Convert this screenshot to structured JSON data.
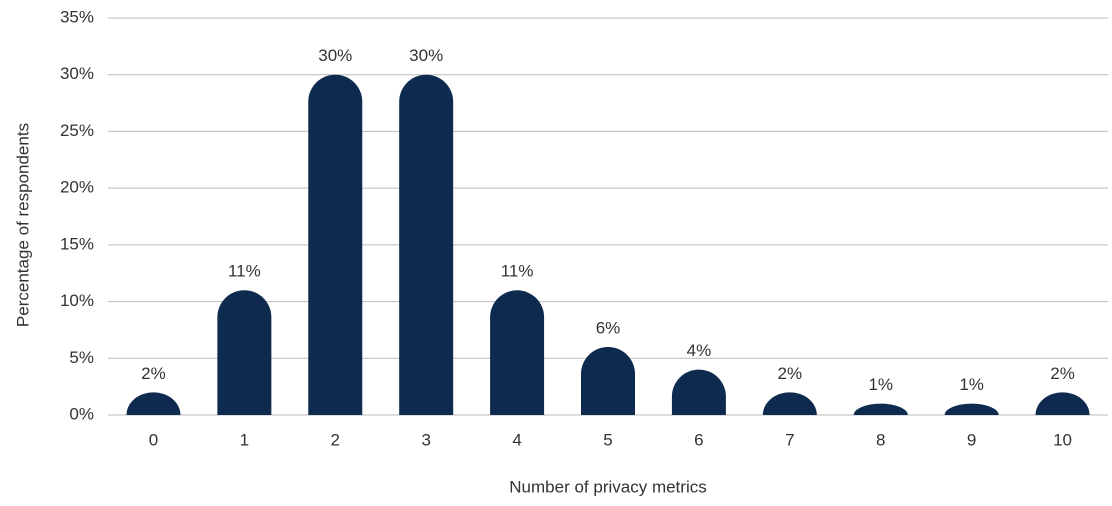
{
  "chart_data": {
    "type": "bar",
    "categories": [
      "0",
      "1",
      "2",
      "3",
      "4",
      "5",
      "6",
      "7",
      "8",
      "9",
      "10"
    ],
    "values": [
      2,
      11,
      30,
      30,
      11,
      6,
      4,
      2,
      1,
      1,
      2
    ],
    "value_labels": [
      "2%",
      "11%",
      "30%",
      "30%",
      "11%",
      "6%",
      "4%",
      "2%",
      "1%",
      "1%",
      "2%"
    ],
    "color": "#0f2a4f",
    "xlabel": "Number of privacy metrics",
    "ylabel": "Percentage of respondents",
    "ylim": [
      0,
      35
    ],
    "yticks": [
      {
        "value": 0,
        "label": "0%"
      },
      {
        "value": 5,
        "label": "5%"
      },
      {
        "value": 10,
        "label": "10%"
      },
      {
        "value": 15,
        "label": "15%"
      },
      {
        "value": 20,
        "label": "20%"
      },
      {
        "value": 25,
        "label": "25%"
      },
      {
        "value": 30,
        "label": "30%"
      },
      {
        "value": 35,
        "label": "35%"
      }
    ],
    "grid": true
  }
}
